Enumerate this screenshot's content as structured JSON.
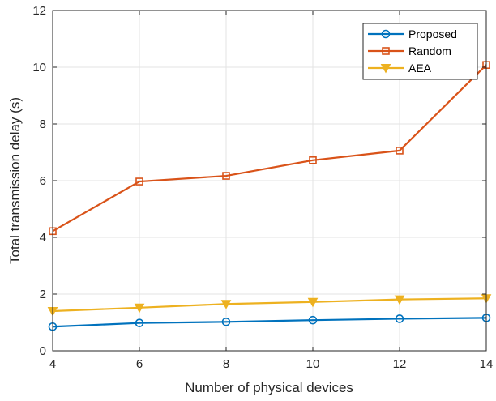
{
  "chart_data": {
    "type": "line",
    "xlabel": "Number of physical devices",
    "ylabel": "Total transmission delay (s)",
    "xlim": [
      4,
      14
    ],
    "ylim": [
      0,
      12
    ],
    "x_ticks": [
      4,
      6,
      8,
      10,
      12,
      14
    ],
    "y_ticks": [
      0,
      2,
      4,
      6,
      8,
      10,
      12
    ],
    "grid": true,
    "legend_position": "top-right",
    "x": [
      4,
      6,
      8,
      10,
      12,
      14
    ],
    "series": [
      {
        "name": "Proposed",
        "color": "#0072BD",
        "marker": "circle",
        "values": [
          0.85,
          0.98,
          1.02,
          1.08,
          1.13,
          1.16
        ]
      },
      {
        "name": "Random",
        "color": "#D95319",
        "marker": "square",
        "values": [
          4.22,
          5.97,
          6.17,
          6.72,
          7.06,
          10.08
        ]
      },
      {
        "name": "AEA",
        "color": "#EDB120",
        "marker": "triangle",
        "values": [
          1.4,
          1.52,
          1.65,
          1.72,
          1.81,
          1.85
        ]
      }
    ]
  }
}
